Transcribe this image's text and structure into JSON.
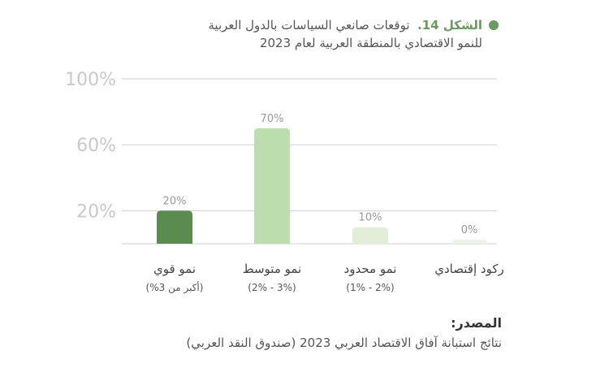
{
  "title": {
    "prefix": "الشكل 14.",
    "line1": "توقعات صانعي السياسات بالدول العربية",
    "line2": "للنمو الاقتصادي بالمنطقة العربية لعام 2023"
  },
  "colors": {
    "accent": "#6a9a5e",
    "bar_strong": "#5a8c50",
    "bar_medium": "#bcdeae",
    "bar_limited": "#e3eed9",
    "bar_recession": "#eef2e9",
    "grid": "#cfcfcf",
    "tick": "#c9c9c9",
    "value_label": "#999999"
  },
  "chart_data": {
    "type": "bar",
    "categories": [
      "نمو قوي",
      "نمو متوسط",
      "نمو محدود",
      "ركود إقتصادي"
    ],
    "category_sublabels": [
      "(أكبر من 3%)",
      "(3% - 2%)",
      "(2% - 1%)",
      ""
    ],
    "values": [
      20,
      70,
      10,
      0
    ],
    "value_labels": [
      "20%",
      "70%",
      "10%",
      "0%"
    ],
    "y_ticks": [
      {
        "value": 20,
        "label": "20%"
      },
      {
        "value": 60,
        "label": "60%"
      },
      {
        "value": 100,
        "label": "100%"
      }
    ],
    "ylim": [
      0,
      100
    ],
    "grid": true
  },
  "source": {
    "label": "المصدر:",
    "text": "نتائج استبانة آفاق الاقتصاد العربي 2023 (صندوق النقد العربي)"
  }
}
